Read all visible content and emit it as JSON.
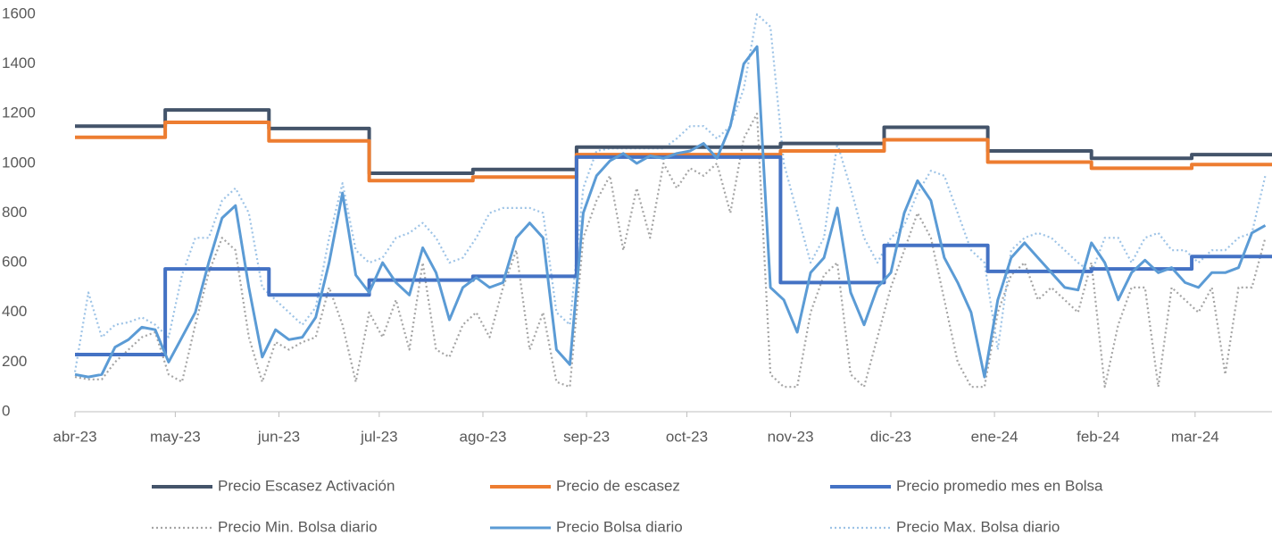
{
  "chart_data": {
    "type": "line",
    "xlim": [
      0,
      358
    ],
    "xticks": [
      {
        "value": 0,
        "label": "abr-23"
      },
      {
        "value": 30,
        "label": "may-23"
      },
      {
        "value": 61,
        "label": "jun-23"
      },
      {
        "value": 91,
        "label": "jul-23"
      },
      {
        "value": 122,
        "label": "ago-23"
      },
      {
        "value": 153,
        "label": "sep-23"
      },
      {
        "value": 183,
        "label": "oct-23"
      },
      {
        "value": 214,
        "label": "nov-23"
      },
      {
        "value": 244,
        "label": "dic-23"
      },
      {
        "value": 275,
        "label": "ene-24"
      },
      {
        "value": 306,
        "label": "feb-24"
      },
      {
        "value": 335,
        "label": "mar-24"
      }
    ],
    "ylim": [
      0,
      1600
    ],
    "yticks": [
      0,
      200,
      400,
      600,
      800,
      1000,
      1200,
      1400,
      1600
    ],
    "x": [
      0,
      4,
      8,
      12,
      16,
      20,
      24,
      28,
      32,
      36,
      40,
      44,
      48,
      52,
      56,
      60,
      64,
      68,
      72,
      76,
      80,
      84,
      88,
      92,
      96,
      100,
      104,
      108,
      112,
      116,
      120,
      124,
      128,
      132,
      136,
      140,
      144,
      148,
      152,
      156,
      160,
      164,
      168,
      172,
      176,
      180,
      184,
      188,
      192,
      196,
      200,
      204,
      208,
      212,
      216,
      220,
      224,
      228,
      232,
      236,
      240,
      244,
      248,
      252,
      256,
      260,
      264,
      268,
      272,
      276,
      280,
      284,
      288,
      292,
      296,
      300,
      304,
      308,
      312,
      316,
      320,
      324,
      328,
      332,
      336,
      340,
      344,
      348,
      352,
      356
    ],
    "series": [
      {
        "name": "Precio Escasez Activación",
        "color": "#44546a",
        "style": "solid",
        "x": [
          0,
          27,
          27,
          58,
          58,
          88,
          88,
          119,
          119,
          150,
          150,
          211,
          211,
          242,
          242,
          273,
          273,
          304,
          304,
          334,
          334,
          358
        ],
        "values": [
          1150,
          1150,
          1215,
          1215,
          1140,
          1140,
          960,
          960,
          975,
          975,
          1065,
          1065,
          1080,
          1080,
          1145,
          1145,
          1050,
          1050,
          1020,
          1020,
          1035,
          1035
        ]
      },
      {
        "name": "Precio de escasez",
        "color": "#ed7d31",
        "style": "solid",
        "x": [
          0,
          27,
          27,
          58,
          58,
          88,
          88,
          119,
          119,
          150,
          150,
          211,
          211,
          242,
          242,
          273,
          273,
          304,
          304,
          334,
          334,
          358
        ],
        "values": [
          1105,
          1105,
          1165,
          1165,
          1090,
          1090,
          930,
          930,
          945,
          945,
          1035,
          1035,
          1050,
          1050,
          1095,
          1095,
          1005,
          1005,
          980,
          980,
          995,
          995
        ]
      },
      {
        "name": "Precio promedio mes en Bolsa",
        "color": "#4472c4",
        "style": "solid",
        "x": [
          0,
          27,
          27,
          58,
          58,
          88,
          88,
          119,
          119,
          150,
          150,
          211,
          211,
          242,
          242,
          273,
          273,
          304,
          304,
          334,
          334,
          358
        ],
        "values": [
          230,
          230,
          575,
          575,
          470,
          470,
          530,
          530,
          545,
          545,
          1025,
          1025,
          520,
          520,
          670,
          670,
          565,
          565,
          575,
          575,
          625,
          625
        ]
      },
      {
        "name": "Precio Min. Bolsa diario",
        "color": "#a5a5a5",
        "style": "dotted",
        "values": [
          140,
          130,
          130,
          200,
          250,
          300,
          320,
          150,
          120,
          350,
          560,
          700,
          650,
          300,
          120,
          280,
          250,
          280,
          300,
          500,
          350,
          120,
          400,
          300,
          450,
          250,
          600,
          250,
          220,
          350,
          400,
          300,
          500,
          650,
          250,
          400,
          120,
          100,
          700,
          850,
          950,
          650,
          900,
          700,
          1000,
          900,
          980,
          950,
          1000,
          800,
          1100,
          1200,
          150,
          100,
          100,
          400,
          550,
          600,
          150,
          100,
          300,
          500,
          650,
          800,
          700,
          450,
          200,
          100,
          100,
          400,
          550,
          600,
          450,
          500,
          450,
          400,
          600,
          100,
          350,
          500,
          500,
          100,
          500,
          450,
          400,
          500,
          150,
          500,
          500,
          700
        ]
      },
      {
        "name": "Precio Bolsa diario",
        "color": "#5b9bd5",
        "style": "solid",
        "values": [
          150,
          140,
          150,
          260,
          290,
          340,
          330,
          200,
          300,
          400,
          600,
          780,
          830,
          500,
          220,
          330,
          290,
          300,
          380,
          600,
          880,
          550,
          480,
          600,
          520,
          470,
          660,
          560,
          370,
          500,
          540,
          500,
          520,
          700,
          760,
          700,
          250,
          190,
          800,
          950,
          1010,
          1040,
          1000,
          1030,
          1020,
          1040,
          1050,
          1080,
          1020,
          1150,
          1400,
          1470,
          500,
          450,
          320,
          560,
          620,
          820,
          480,
          350,
          500,
          560,
          800,
          930,
          850,
          620,
          520,
          400,
          140,
          450,
          620,
          680,
          620,
          560,
          500,
          490,
          680,
          600,
          450,
          560,
          610,
          560,
          580,
          520,
          500,
          560,
          560,
          580,
          720,
          750
        ]
      },
      {
        "name": "Precio Max. Bolsa diario",
        "color": "#9dc3e6",
        "style": "dotted",
        "values": [
          160,
          480,
          300,
          350,
          360,
          380,
          350,
          300,
          550,
          700,
          700,
          850,
          900,
          800,
          500,
          450,
          400,
          350,
          420,
          700,
          920,
          650,
          600,
          620,
          700,
          720,
          760,
          700,
          600,
          620,
          700,
          800,
          820,
          820,
          820,
          800,
          400,
          350,
          900,
          1050,
          1060,
          1060,
          1060,
          1060,
          1060,
          1100,
          1150,
          1150,
          1100,
          1150,
          1300,
          1600,
          1550,
          1000,
          800,
          600,
          700,
          1080,
          900,
          700,
          600,
          700,
          750,
          880,
          970,
          950,
          800,
          650,
          600,
          250,
          650,
          700,
          720,
          700,
          650,
          600,
          560,
          700,
          700,
          600,
          700,
          720,
          650,
          650,
          600,
          650,
          650,
          700,
          720,
          950
        ]
      }
    ]
  }
}
